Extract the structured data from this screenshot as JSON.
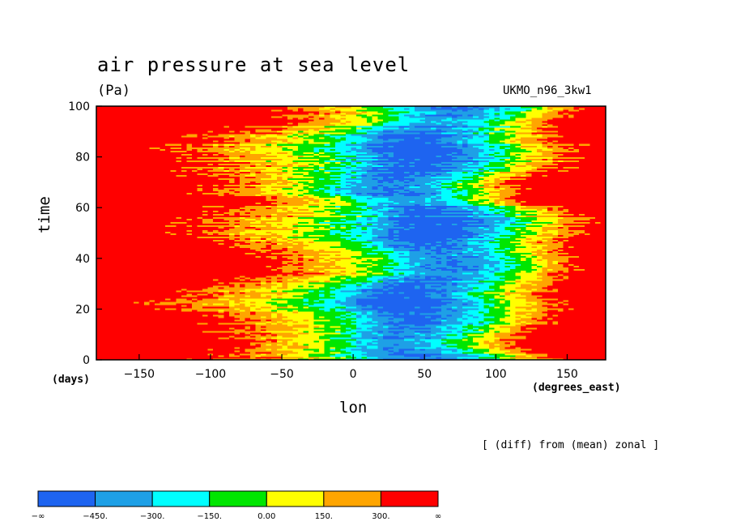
{
  "chart_data": {
    "type": "heatmap",
    "title": "air pressure at sea level",
    "units_label": "(Pa)",
    "run_label": "UKMO_n96_3kw1",
    "subtitle_note": "[ (diff) from (mean) zonal ]",
    "xlabel": "lon",
    "xunit": "(degrees_east)",
    "ylabel": "time",
    "yunit": "(days)",
    "xlim": [
      -180,
      177
    ],
    "ylim": [
      0,
      100
    ],
    "xticks": [
      -150,
      -100,
      -50,
      0,
      50,
      100,
      150
    ],
    "yticks": [
      0,
      20,
      40,
      60,
      80,
      100
    ],
    "x_tick_labels": [
      "−150",
      "−100",
      "−50",
      "0",
      "50",
      "100",
      "150"
    ],
    "y_tick_labels": [
      "0",
      "20",
      "40",
      "60",
      "80",
      "100"
    ],
    "zonal_profile": {
      "lon": [
        -180,
        -150,
        -120,
        -90,
        -60,
        -30,
        0,
        20,
        40,
        60,
        80,
        100,
        120,
        150,
        177
      ],
      "value": [
        560,
        520,
        440,
        330,
        220,
        60,
        -150,
        -380,
        -520,
        -470,
        -330,
        -100,
        140,
        420,
        560
      ]
    },
    "colorbar": {
      "levels": [
        -450,
        -300,
        -150,
        0,
        150,
        300
      ],
      "labels": [
        "−∞",
        "−450.",
        "−300.",
        "−150.",
        "0.00",
        "150.",
        "300.",
        "∞"
      ],
      "colors": [
        "#1e64f0",
        "#1ea0e6",
        "#00ffff",
        "#00e600",
        "#ffff00",
        "#ffa500",
        "#ff0000"
      ]
    }
  }
}
